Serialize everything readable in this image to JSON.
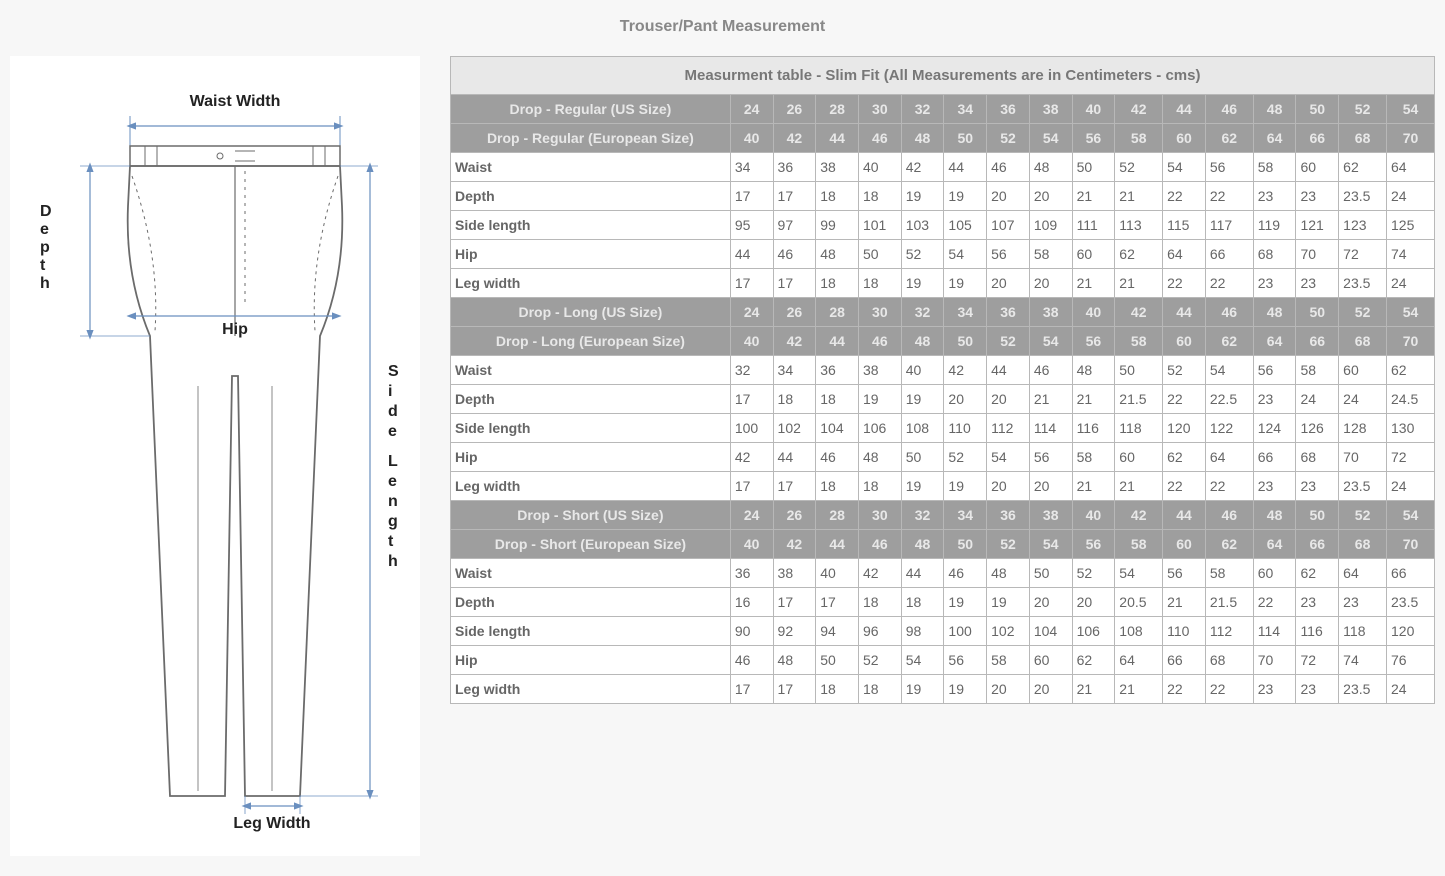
{
  "title": "Trouser/Pant Measurement",
  "diagram": {
    "labels": {
      "waist_width": "Waist Width",
      "depth": "Depth",
      "hip": "Hip",
      "side_length": "Side Length",
      "leg_width": "Leg Width"
    },
    "colors": {
      "outline": "#6b6b6b",
      "arrow": "#6a8fbf",
      "text": "#222222",
      "bg": "#ffffff"
    }
  },
  "table": {
    "caption": "Measurment table - Slim Fit (All Measurements are in Centimeters - cms)",
    "colors": {
      "header_bg": "#9e9e9e",
      "header_fg": "#e8e8e8",
      "caption_bg": "#e8e8e8",
      "border": "#b8b8b8",
      "cell_bg": "#ffffff",
      "text": "#666666"
    },
    "sections": [
      {
        "us_label": "Drop - Regular (US Size)",
        "us_sizes": [
          "24",
          "26",
          "28",
          "30",
          "32",
          "34",
          "36",
          "38",
          "40",
          "42",
          "44",
          "46",
          "48",
          "50",
          "52",
          "54"
        ],
        "eu_label": "Drop - Regular (European Size)",
        "eu_sizes": [
          "40",
          "42",
          "44",
          "46",
          "48",
          "50",
          "52",
          "54",
          "56",
          "58",
          "60",
          "62",
          "64",
          "66",
          "68",
          "70"
        ],
        "rows": [
          {
            "label": "Waist",
            "values": [
              "34",
              "36",
              "38",
              "40",
              "42",
              "44",
              "46",
              "48",
              "50",
              "52",
              "54",
              "56",
              "58",
              "60",
              "62",
              "64"
            ]
          },
          {
            "label": "Depth",
            "values": [
              "17",
              "17",
              "18",
              "18",
              "19",
              "19",
              "20",
              "20",
              "21",
              "21",
              "22",
              "22",
              "23",
              "23",
              "23.5",
              "24"
            ]
          },
          {
            "label": "Side length",
            "values": [
              "95",
              "97",
              "99",
              "101",
              "103",
              "105",
              "107",
              "109",
              "111",
              "113",
              "115",
              "117",
              "119",
              "121",
              "123",
              "125"
            ]
          },
          {
            "label": "Hip",
            "values": [
              "44",
              "46",
              "48",
              "50",
              "52",
              "54",
              "56",
              "58",
              "60",
              "62",
              "64",
              "66",
              "68",
              "70",
              "72",
              "74"
            ]
          },
          {
            "label": "Leg width",
            "values": [
              "17",
              "17",
              "18",
              "18",
              "19",
              "19",
              "20",
              "20",
              "21",
              "21",
              "22",
              "22",
              "23",
              "23",
              "23.5",
              "24"
            ]
          }
        ]
      },
      {
        "us_label": "Drop - Long (US Size)",
        "us_sizes": [
          "24",
          "26",
          "28",
          "30",
          "32",
          "34",
          "36",
          "38",
          "40",
          "42",
          "44",
          "46",
          "48",
          "50",
          "52",
          "54"
        ],
        "eu_label": "Drop - Long (European Size)",
        "eu_sizes": [
          "40",
          "42",
          "44",
          "46",
          "48",
          "50",
          "52",
          "54",
          "56",
          "58",
          "60",
          "62",
          "64",
          "66",
          "68",
          "70"
        ],
        "rows": [
          {
            "label": "Waist",
            "values": [
              "32",
              "34",
              "36",
              "38",
              "40",
              "42",
              "44",
              "46",
              "48",
              "50",
              "52",
              "54",
              "56",
              "58",
              "60",
              "62"
            ]
          },
          {
            "label": "Depth",
            "values": [
              "17",
              "18",
              "18",
              "19",
              "19",
              "20",
              "20",
              "21",
              "21",
              "21.5",
              "22",
              "22.5",
              "23",
              "24",
              "24",
              "24.5"
            ]
          },
          {
            "label": "Side length",
            "values": [
              "100",
              "102",
              "104",
              "106",
              "108",
              "110",
              "112",
              "114",
              "116",
              "118",
              "120",
              "122",
              "124",
              "126",
              "128",
              "130"
            ]
          },
          {
            "label": "Hip",
            "values": [
              "42",
              "44",
              "46",
              "48",
              "50",
              "52",
              "54",
              "56",
              "58",
              "60",
              "62",
              "64",
              "66",
              "68",
              "70",
              "72"
            ]
          },
          {
            "label": "Leg width",
            "values": [
              "17",
              "17",
              "18",
              "18",
              "19",
              "19",
              "20",
              "20",
              "21",
              "21",
              "22",
              "22",
              "23",
              "23",
              "23.5",
              "24"
            ]
          }
        ]
      },
      {
        "us_label": "Drop - Short (US Size)",
        "us_sizes": [
          "24",
          "26",
          "28",
          "30",
          "32",
          "34",
          "36",
          "38",
          "40",
          "42",
          "44",
          "46",
          "48",
          "50",
          "52",
          "54"
        ],
        "eu_label": "Drop - Short (European Size)",
        "eu_sizes": [
          "40",
          "42",
          "44",
          "46",
          "48",
          "50",
          "52",
          "54",
          "56",
          "58",
          "60",
          "62",
          "64",
          "66",
          "68",
          "70"
        ],
        "rows": [
          {
            "label": "Waist",
            "values": [
              "36",
              "38",
              "40",
              "42",
              "44",
              "46",
              "48",
              "50",
              "52",
              "54",
              "56",
              "58",
              "60",
              "62",
              "64",
              "66"
            ]
          },
          {
            "label": "Depth",
            "values": [
              "16",
              "17",
              "17",
              "18",
              "18",
              "19",
              "19",
              "20",
              "20",
              "20.5",
              "21",
              "21.5",
              "22",
              "23",
              "23",
              "23.5"
            ]
          },
          {
            "label": "Side length",
            "values": [
              "90",
              "92",
              "94",
              "96",
              "98",
              "100",
              "102",
              "104",
              "106",
              "108",
              "110",
              "112",
              "114",
              "116",
              "118",
              "120"
            ]
          },
          {
            "label": "Hip",
            "values": [
              "46",
              "48",
              "50",
              "52",
              "54",
              "56",
              "58",
              "60",
              "62",
              "64",
              "66",
              "68",
              "70",
              "72",
              "74",
              "76"
            ]
          },
          {
            "label": "Leg width",
            "values": [
              "17",
              "17",
              "18",
              "18",
              "19",
              "19",
              "20",
              "20",
              "21",
              "21",
              "22",
              "22",
              "23",
              "23",
              "23.5",
              "24"
            ]
          }
        ]
      }
    ]
  }
}
